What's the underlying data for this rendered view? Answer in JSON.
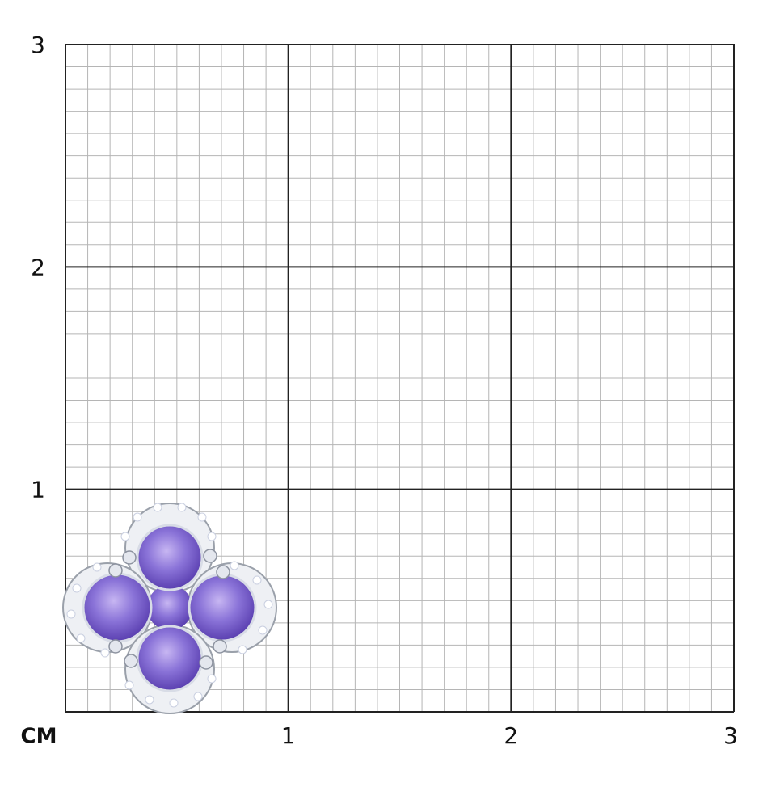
{
  "ruler": {
    "unit": "CM",
    "x_ticks": [
      1,
      2,
      3
    ],
    "y_ticks": [
      1,
      2,
      3
    ]
  }
}
